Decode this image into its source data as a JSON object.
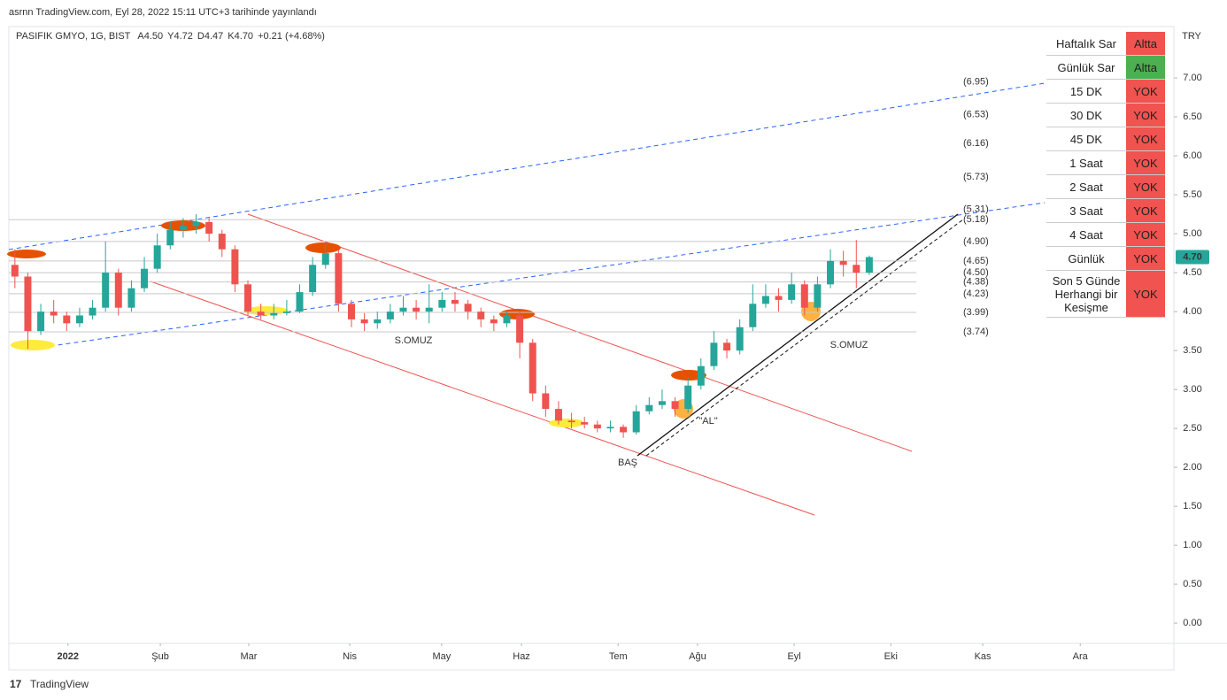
{
  "header": {
    "published": "asrnn TradingView.com, Eyl 28, 2022 15:11 UTC+3 tarihinde yayınlandı",
    "symbol": "PASIFIK GMYO, 1G, BIST",
    "ohlc": [
      [
        "A",
        "4.50"
      ],
      [
        "Y",
        "4.72"
      ],
      [
        "D",
        "4.47"
      ],
      [
        "K",
        "4.70"
      ]
    ],
    "change": "+0.21 (+4.68%)"
  },
  "chart_data": {
    "type": "candlestick",
    "currency": "TRY",
    "last_price_label": "4.70",
    "up_color": "#26a69a",
    "down_color": "#ef5350",
    "grid": false,
    "xlim": [
      0,
      270
    ],
    "ylim": [
      -0.26,
      7.66
    ],
    "xticks": [
      {
        "value": 13.7,
        "label": "2022"
      },
      {
        "value": 35.1,
        "label": "Şub"
      },
      {
        "value": 55.6,
        "label": "Mar"
      },
      {
        "value": 79,
        "label": "Nis"
      },
      {
        "value": 100.3,
        "label": "May"
      },
      {
        "value": 118.8,
        "label": "Haz"
      },
      {
        "value": 141.2,
        "label": "Tem"
      },
      {
        "value": 159.6,
        "label": "Ağu"
      },
      {
        "value": 182,
        "label": "Eyl"
      },
      {
        "value": 204.4,
        "label": "Eki"
      },
      {
        "value": 225.7,
        "label": "Kas"
      },
      {
        "value": 248.3,
        "label": "Ara"
      }
    ],
    "yticks": [
      {
        "value": 0,
        "label": "0.00"
      },
      {
        "value": 0.5,
        "label": "0.50"
      },
      {
        "value": 1,
        "label": "1.00"
      },
      {
        "value": 1.5,
        "label": "1.50"
      },
      {
        "value": 2,
        "label": "2.00"
      },
      {
        "value": 2.5,
        "label": "2.50"
      },
      {
        "value": 3,
        "label": "3.00"
      },
      {
        "value": 3.5,
        "label": "3.50"
      },
      {
        "value": 4,
        "label": "4.00"
      },
      {
        "value": 4.5,
        "label": "4.50"
      },
      {
        "value": 5,
        "label": "5.00"
      },
      {
        "value": 5.5,
        "label": "5.50"
      },
      {
        "value": 6,
        "label": "6.00"
      },
      {
        "value": 6.5,
        "label": "6.50"
      },
      {
        "value": 7,
        "label": "7.00"
      }
    ],
    "x": [
      1.4,
      4.4,
      7.4,
      10.4,
      13.4,
      16.4,
      19.4,
      22.4,
      25.4,
      28.4,
      31.4,
      34.4,
      37.4,
      40.4,
      43.4,
      46.4,
      49.4,
      52.4,
      55.4,
      58.4,
      61.4,
      64.4,
      67.4,
      70.4,
      73.4,
      76.4,
      79.4,
      82.4,
      85.4,
      88.4,
      91.4,
      94.4,
      97.4,
      100.4,
      103.4,
      106.4,
      109.4,
      112.4,
      115.4,
      118.4,
      121.4,
      124.4,
      127.4,
      130.4,
      133.4,
      136.4,
      139.4,
      142.4,
      145.4,
      148.4,
      151.4,
      154.4,
      157.4,
      160.4,
      163.4,
      166.4,
      169.4,
      172.4,
      175.4,
      178.4,
      181.4,
      184.4,
      187.4,
      190.4,
      193.4,
      196.4,
      199.4
    ],
    "open": [
      4.6,
      4.45,
      3.75,
      4,
      3.95,
      3.85,
      3.95,
      4.05,
      4.5,
      4.05,
      4.3,
      4.55,
      4.85,
      5.05,
      5.1,
      5.15,
      5,
      4.8,
      4.35,
      4,
      3.95,
      3.98,
      4,
      4.25,
      4.6,
      4.75,
      4.1,
      3.9,
      3.85,
      3.9,
      4,
      4.05,
      4,
      4.05,
      4.15,
      4.1,
      4,
      3.9,
      3.85,
      3.95,
      3.6,
      2.95,
      2.75,
      2.6,
      2.58,
      2.55,
      2.5,
      2.52,
      2.45,
      2.72,
      2.8,
      2.85,
      2.75,
      3.05,
      3.3,
      3.6,
      3.5,
      3.8,
      4.1,
      4.2,
      4.15,
      4.35,
      4.05,
      4.35,
      4.65,
      4.6,
      4.5
    ],
    "high": [
      4.8,
      4.5,
      4.1,
      4.15,
      4,
      4.05,
      4.15,
      4.9,
      4.55,
      4.4,
      4.7,
      5,
      5.15,
      5.2,
      5.25,
      5.2,
      5.05,
      4.85,
      4.4,
      4.1,
      4.1,
      4.15,
      4.35,
      4.7,
      4.9,
      4.8,
      4.15,
      3.98,
      4,
      4.1,
      4.2,
      4.15,
      4.35,
      4.25,
      4.25,
      4.15,
      4.05,
      3.95,
      4,
      4,
      3.65,
      3.05,
      2.85,
      2.7,
      2.65,
      2.6,
      2.6,
      2.55,
      2.8,
      2.9,
      3,
      2.9,
      3.15,
      3.4,
      3.75,
      3.65,
      3.9,
      4.35,
      4.35,
      4.3,
      4.5,
      4.4,
      4.45,
      4.8,
      4.78,
      4.92,
      4.72
    ],
    "low": [
      4.3,
      3.52,
      3.7,
      3.85,
      3.75,
      3.8,
      3.9,
      4,
      3.95,
      4,
      4.25,
      4.5,
      4.8,
      4.95,
      5,
      4.9,
      4.7,
      4.25,
      3.95,
      3.9,
      3.9,
      3.95,
      3.98,
      4.2,
      4.55,
      4,
      3.8,
      3.75,
      3.78,
      3.85,
      3.95,
      3.9,
      3.85,
      4,
      4,
      3.9,
      3.8,
      3.75,
      3.8,
      3.4,
      2.85,
      2.65,
      2.55,
      2.5,
      2.5,
      2.45,
      2.45,
      2.38,
      2.42,
      2.68,
      2.75,
      2.65,
      2.7,
      3,
      3.25,
      3.4,
      3.45,
      3.75,
      4.05,
      4,
      4.1,
      3.95,
      4,
      4.3,
      4.45,
      4.3,
      4.47
    ],
    "close": [
      4.45,
      3.75,
      4,
      3.95,
      3.85,
      3.95,
      4.05,
      4.5,
      4.05,
      4.3,
      4.55,
      4.85,
      5.05,
      5.1,
      5.15,
      5,
      4.8,
      4.35,
      4,
      3.95,
      3.98,
      4,
      4.25,
      4.6,
      4.75,
      4.1,
      3.9,
      3.85,
      3.9,
      4,
      4.05,
      4,
      4.05,
      4.15,
      4.1,
      4,
      3.9,
      3.85,
      3.95,
      3.6,
      2.95,
      2.75,
      2.6,
      2.58,
      2.55,
      2.5,
      2.52,
      2.45,
      2.72,
      2.8,
      2.85,
      2.75,
      3.05,
      3.3,
      3.6,
      3.5,
      3.8,
      4.1,
      4.2,
      4.15,
      4.35,
      4.05,
      4.35,
      4.65,
      4.6,
      4.5,
      4.7
    ],
    "levels": [
      {
        "value": 6.95,
        "label": "(6.95)",
        "color": "#333333",
        "line": false
      },
      {
        "value": 6.53,
        "label": "(6.53)",
        "color": "#2962ff",
        "line": false
      },
      {
        "value": 6.16,
        "label": "(6.16)",
        "color": "#2962ff",
        "line": false
      },
      {
        "value": 5.73,
        "label": "(5.73)",
        "color": "#2962ff",
        "line": false
      },
      {
        "value": 5.31,
        "label": "(5.31)",
        "color": "#2962ff",
        "line": false
      },
      {
        "value": 5.18,
        "label": "(5.18)",
        "color": "#2962ff",
        "line": true
      },
      {
        "value": 4.9,
        "label": "(4.90)",
        "color": "#ef5350",
        "line": true
      },
      {
        "value": 4.65,
        "label": "(4.65)",
        "color": "#ef5350",
        "line": true
      },
      {
        "value": 4.5,
        "label": "(4.50)",
        "color": "#333333",
        "line": true
      },
      {
        "value": 4.38,
        "label": "(4.38)",
        "color": "#333333",
        "line": true
      },
      {
        "value": 4.23,
        "label": "(4.23)",
        "color": "#333333",
        "line": true
      },
      {
        "value": 3.99,
        "label": "(3.99)",
        "color": "#333333",
        "line": true
      },
      {
        "value": 3.74,
        "label": "(3.74)",
        "color": "#333333",
        "line": true
      }
    ],
    "annotations": [
      "S.OMUZ",
      "S.OMUZ",
      "BAŞ",
      "\"AL\""
    ]
  },
  "status_table": {
    "rows": [
      [
        "Haftalık Sar",
        "Altta"
      ],
      [
        "Günlük Sar",
        "Altta"
      ],
      [
        "15 DK",
        "YOK"
      ],
      [
        "30 DK",
        "YOK"
      ],
      [
        "45 DK",
        "YOK"
      ],
      [
        "1 Saat",
        "YOK"
      ],
      [
        "2 Saat",
        "YOK"
      ],
      [
        "3 Saat",
        "YOK"
      ],
      [
        "4 Saat",
        "YOK"
      ],
      [
        "Günlük",
        "YOK"
      ],
      [
        "Son 5 Günde Herhangi bir Kesişme",
        "YOK"
      ]
    ],
    "colors": [
      "#f05350",
      "#4caf50",
      "#f05350",
      "#f05350",
      "#f05350",
      "#f05350",
      "#f05350",
      "#f05350",
      "#f05350",
      "#f05350",
      "#f05350"
    ]
  },
  "footer": {
    "brand": "TradingView"
  }
}
